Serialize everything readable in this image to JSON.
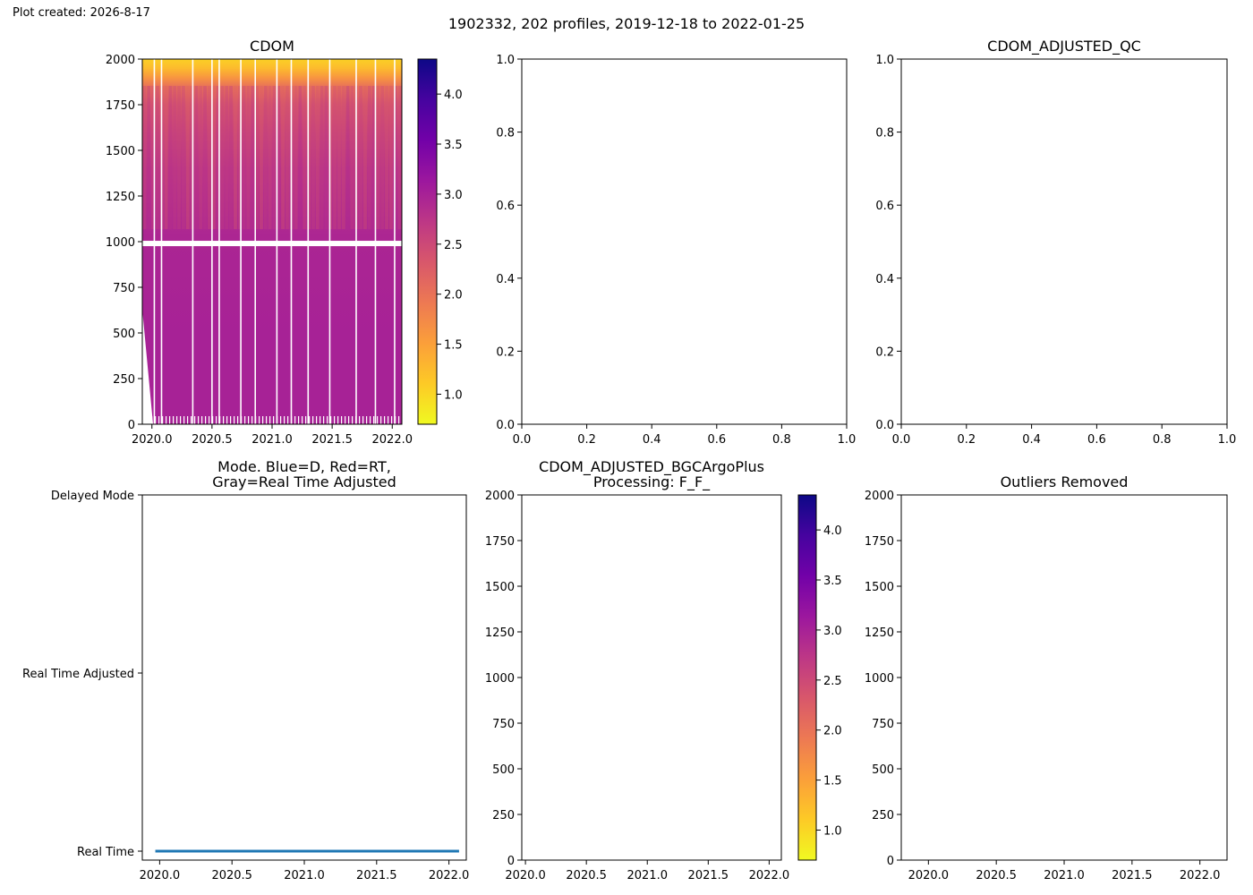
{
  "figure": {
    "created_label": "Plot created: 2026-8-17",
    "suptitle": "1902332, 202 profiles, 2019-12-18 to 2022-01-25"
  },
  "colormap": {
    "name": "plasma_r",
    "stops": [
      "#f0f921",
      "#fdca26",
      "#fb9f3a",
      "#ed7953",
      "#d8576b",
      "#bd3786",
      "#9c179e",
      "#7201a8",
      "#46039f",
      "#0d0887"
    ]
  },
  "chart_data": [
    {
      "id": "cdom",
      "type": "heatmap",
      "title": "CDOM",
      "xlabel": "",
      "ylabel": "",
      "xlim": [
        2019.92,
        2022.08
      ],
      "ylim": [
        2000,
        0
      ],
      "xticks": [
        "2020.0",
        "2020.5",
        "2021.0",
        "2021.5",
        "2022.0"
      ],
      "xtick_values": [
        2020.0,
        2020.5,
        2021.0,
        2021.5,
        2022.0
      ],
      "yticks": [
        "0",
        "250",
        "500",
        "750",
        "1000",
        "1250",
        "1500",
        "1750",
        "2000"
      ],
      "ytick_values": [
        0,
        250,
        500,
        750,
        1000,
        1250,
        1500,
        1750,
        2000
      ],
      "colorbar": {
        "range": [
          0.7,
          4.35
        ],
        "ticks": [
          "1.0",
          "1.5",
          "2.0",
          "2.5",
          "3.0",
          "3.5",
          "4.0"
        ],
        "tick_values": [
          1.0,
          1.5,
          2.0,
          2.5,
          3.0,
          3.5,
          4.0
        ]
      },
      "depth_profile": {
        "depth": [
          0,
          50,
          100,
          150,
          250,
          400,
          600,
          800,
          1000,
          1500,
          2000
        ],
        "value": [
          1.05,
          1.25,
          1.6,
          2.0,
          2.35,
          2.55,
          2.75,
          2.85,
          2.95,
          3.0,
          3.0
        ]
      },
      "gap_depth": 990,
      "time_gaps": [
        2020.02,
        2020.08,
        2020.34,
        2020.5,
        2020.56,
        2020.74,
        2020.86,
        2021.04,
        2021.16,
        2021.3,
        2021.48,
        2021.7,
        2021.86,
        2022.02
      ]
    },
    {
      "id": "empty-middle",
      "type": "scatter",
      "title": "",
      "xlim": [
        0.0,
        1.0
      ],
      "ylim": [
        0.0,
        1.0
      ],
      "xticks": [
        "0.0",
        "0.2",
        "0.4",
        "0.6",
        "0.8",
        "1.0"
      ],
      "yticks": [
        "0.0",
        "0.2",
        "0.4",
        "0.6",
        "0.8",
        "1.0"
      ],
      "series": []
    },
    {
      "id": "cdom-adjusted-qc",
      "type": "scatter",
      "title": "CDOM_ADJUSTED_QC",
      "xlim": [
        0.0,
        1.0
      ],
      "ylim": [
        0.0,
        1.0
      ],
      "xticks": [
        "0.0",
        "0.2",
        "0.4",
        "0.6",
        "0.8",
        "1.0"
      ],
      "yticks": [
        "0.0",
        "0.2",
        "0.4",
        "0.6",
        "0.8",
        "1.0"
      ],
      "series": []
    },
    {
      "id": "mode",
      "type": "line",
      "title": "Mode. Blue=D, Red=RT,\nGray=Real Time Adjusted",
      "xlim": [
        2019.88,
        2022.12
      ],
      "categories": [
        "Real Time",
        "Real Time Adjusted",
        "Delayed Mode"
      ],
      "xticks": [
        "2020.0",
        "2020.5",
        "2021.0",
        "2021.5",
        "2022.0"
      ],
      "xtick_values": [
        2020.0,
        2020.5,
        2021.0,
        2021.5,
        2022.0
      ],
      "series": [
        {
          "color": "#1f77b4",
          "x": [
            2019.97,
            2022.07
          ],
          "y": [
            "Real Time",
            "Real Time"
          ]
        }
      ]
    },
    {
      "id": "cdom-adjusted-bgcargoplus",
      "type": "heatmap",
      "title": "CDOM_ADJUSTED_BGCArgoPlus\nProcessing: F_F_",
      "xlim": [
        2019.97,
        2022.1
      ],
      "ylim": [
        2000,
        0
      ],
      "xticks": [
        "2020.0",
        "2020.5",
        "2021.0",
        "2021.5",
        "2022.0"
      ],
      "xtick_values": [
        2020.0,
        2020.5,
        2021.0,
        2021.5,
        2022.0
      ],
      "yticks": [
        "0",
        "250",
        "500",
        "750",
        "1000",
        "1250",
        "1500",
        "1750",
        "2000"
      ],
      "ytick_values": [
        0,
        250,
        500,
        750,
        1000,
        1250,
        1500,
        1750,
        2000
      ],
      "colorbar": {
        "range": [
          0.7,
          4.35
        ],
        "ticks": [
          "1.0",
          "1.5",
          "2.0",
          "2.5",
          "3.0",
          "3.5",
          "4.0"
        ],
        "tick_values": [
          1.0,
          1.5,
          2.0,
          2.5,
          3.0,
          3.5,
          4.0
        ]
      },
      "series": []
    },
    {
      "id": "outliers-removed",
      "type": "scatter",
      "title": "Outliers Removed",
      "xlim": [
        1.99,
        2.11
      ],
      "ylim": [
        2000,
        0
      ],
      "xticks": [
        "2020.0",
        "2020.5",
        "2021.0",
        "2021.5",
        "2022.0"
      ],
      "xtick_values": [
        2.0,
        2.025,
        2.05,
        2.075,
        2.1
      ],
      "yticks": [
        "0",
        "250",
        "500",
        "750",
        "1000",
        "1250",
        "1500",
        "1750",
        "2000"
      ],
      "ytick_values": [
        0,
        250,
        500,
        750,
        1000,
        1250,
        1500,
        1750,
        2000
      ],
      "series": []
    }
  ]
}
